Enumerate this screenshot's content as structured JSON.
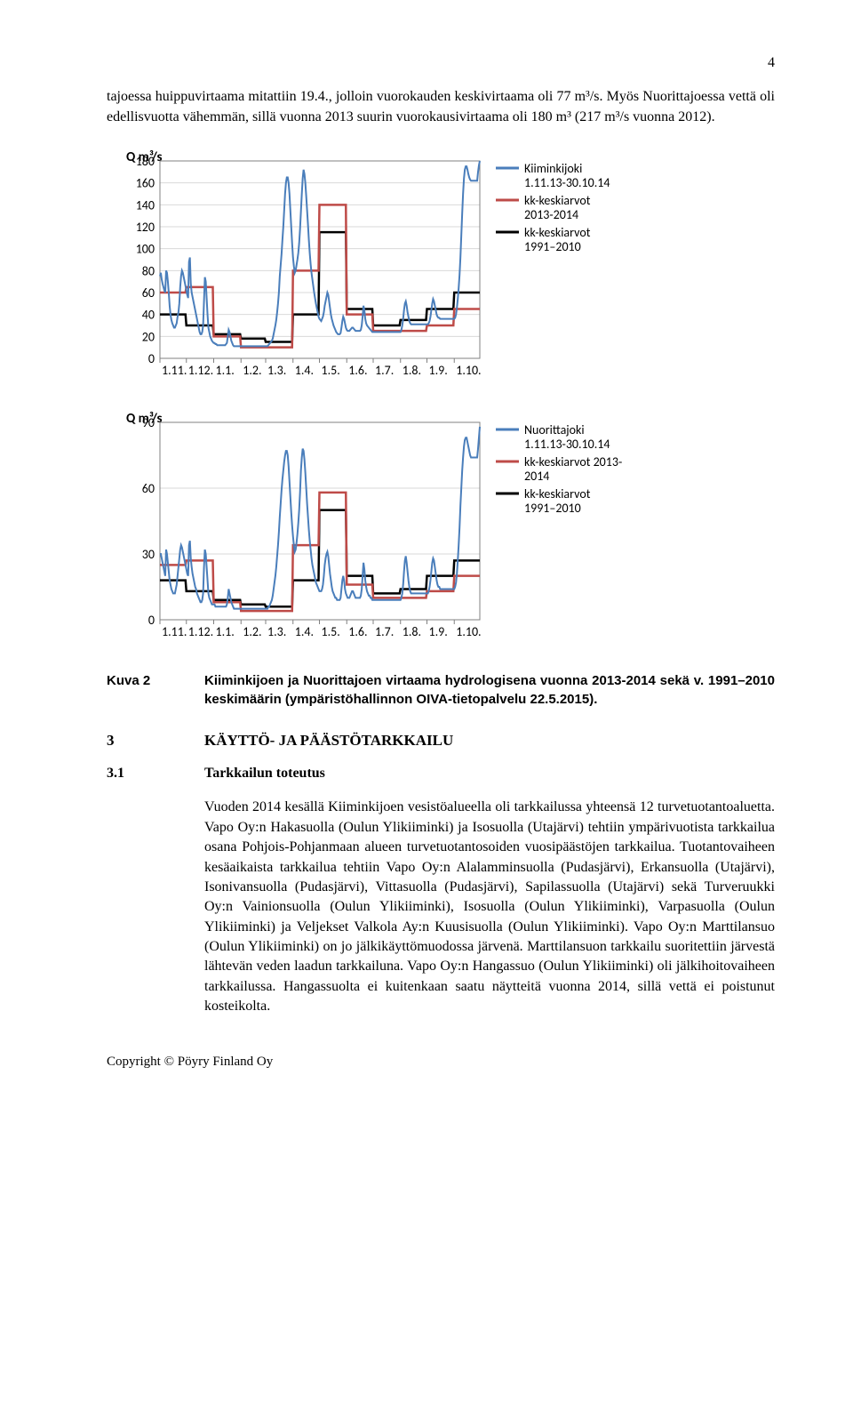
{
  "page_number": "4",
  "p1": "tajoessa huippuvirtaama mitattiin 19.4., jolloin vuorokauden keskivirtaama oli 77 m³/s. Myös Nuorittajoessa vettä oli edellisvuotta vähemmän, sillä vuonna 2013 suurin vuorokausivirtaama oli 180 m³ (217 m³/s vuonna 2012).",
  "chart1": {
    "type": "line",
    "y_title": "Q m³/s",
    "ymax": 180,
    "ymin": 0,
    "ytick_step": 20,
    "x_ticks": [
      "1.11.",
      "1.12.",
      "1.1.",
      "1.2.",
      "1.3.",
      "1.4.",
      "1.5.",
      "1.6.",
      "1.7.",
      "1.8.",
      "1.9.",
      "1.10."
    ],
    "colors": {
      "daily": "#4a7ebb",
      "monthly_new": "#be4b48",
      "monthly_old": "#000000",
      "grid": "#d9d9d9",
      "axis": "#808080",
      "bg": "#ffffff"
    },
    "line_width": 2,
    "step_width": 2.5,
    "legend": [
      {
        "label": "Kiiminkijoki",
        "label2": "1.11.13-30.10.14",
        "color": "#4a7ebb"
      },
      {
        "label": "kk-keskiarvot",
        "label2": "2013-2014",
        "color": "#be4b48"
      },
      {
        "label": "kk-keskiarvot",
        "label2": "1991–2010",
        "color": "#000000"
      }
    ],
    "daily_per_month": [
      [
        75,
        78,
        72,
        68,
        65,
        62,
        60,
        80,
        78,
        70,
        60,
        48,
        40,
        35,
        32,
        30,
        28,
        28,
        30,
        32,
        38,
        42,
        50,
        65,
        75,
        80,
        78,
        74,
        70,
        66
      ],
      [
        62,
        58,
        55,
        88,
        92,
        68,
        60,
        56,
        52,
        48,
        44,
        40,
        36,
        32,
        28,
        24,
        22,
        22,
        24,
        30,
        52,
        74,
        70,
        55,
        40,
        28,
        24,
        20,
        18,
        16,
        15
      ],
      [
        14,
        14,
        13,
        13,
        12,
        12,
        12,
        12,
        12,
        12,
        12,
        12,
        12,
        12,
        13,
        14,
        20,
        26,
        24,
        20,
        16,
        14,
        12,
        11,
        11,
        11,
        11,
        11,
        11,
        11,
        11
      ],
      [
        11,
        11,
        11,
        11,
        11,
        11,
        11,
        11,
        11,
        11,
        11,
        11,
        11,
        11,
        11,
        11,
        11,
        11,
        11,
        11,
        11,
        11,
        11,
        11,
        11,
        11,
        11,
        11
      ],
      [
        11,
        11,
        11,
        12,
        13,
        14,
        15,
        16,
        18,
        22,
        26,
        30,
        35,
        42,
        50,
        60,
        75,
        85,
        95,
        108,
        120,
        135,
        150,
        160,
        165,
        165,
        160,
        150,
        135,
        120,
        105
      ],
      [
        92,
        84,
        78,
        80,
        85,
        90,
        96,
        105,
        118,
        134,
        150,
        164,
        172,
        168,
        160,
        148,
        135,
        122,
        108,
        96,
        86,
        78,
        72,
        66,
        60,
        55,
        50,
        46,
        42,
        38
      ],
      [
        36,
        35,
        34,
        36,
        38,
        42,
        48,
        52,
        56,
        60,
        58,
        52,
        46,
        40,
        36,
        33,
        30,
        28,
        26,
        24,
        23,
        22,
        22,
        22,
        23,
        28,
        34,
        38,
        36,
        32,
        28
      ],
      [
        26,
        25,
        25,
        25,
        26,
        27,
        28,
        28,
        27,
        26,
        25,
        25,
        25,
        25,
        25,
        25,
        26,
        30,
        38,
        48,
        44,
        36,
        32,
        30,
        29,
        28,
        27,
        26,
        25,
        24
      ],
      [
        24,
        24,
        24,
        24,
        24,
        24,
        24,
        24,
        24,
        24,
        24,
        24,
        24,
        24,
        24,
        24,
        24,
        24,
        24,
        24,
        24,
        24,
        24,
        24,
        24,
        24,
        24,
        24,
        24,
        24,
        24
      ],
      [
        24,
        26,
        30,
        36,
        44,
        50,
        52,
        48,
        42,
        38,
        34,
        32,
        31,
        31,
        31,
        31,
        31,
        31,
        31,
        31,
        31,
        31,
        31,
        31,
        31,
        31,
        31,
        31,
        31,
        31
      ],
      [
        31,
        31,
        32,
        34,
        38,
        44,
        50,
        54,
        52,
        48,
        44,
        40,
        38,
        37,
        37,
        36,
        36,
        36,
        36,
        36,
        36,
        36,
        36,
        36,
        36,
        36,
        36,
        36,
        36,
        36,
        36
      ],
      [
        36,
        37,
        40,
        46,
        54,
        64,
        76,
        92,
        112,
        132,
        150,
        164,
        172,
        175,
        175,
        172,
        168,
        165,
        163,
        162,
        162,
        162,
        162,
        162,
        162,
        162,
        162,
        170,
        176,
        180
      ]
    ],
    "monthly_new": [
      60,
      65,
      20,
      10,
      10,
      80,
      140,
      40,
      25,
      25,
      30,
      45
    ],
    "monthly_old": [
      40,
      30,
      22,
      18,
      15,
      40,
      115,
      45,
      30,
      35,
      45,
      60
    ]
  },
  "chart2": {
    "type": "line",
    "y_title": "Q m³/s",
    "ymax": 90,
    "ymin": 0,
    "yticks": [
      0,
      30,
      60,
      90
    ],
    "x_ticks": [
      "1.11.",
      "1.12.",
      "1.1.",
      "1.2.",
      "1.3.",
      "1.4.",
      "1.5.",
      "1.6.",
      "1.7.",
      "1.8.",
      "1.9.",
      "1.10."
    ],
    "colors": {
      "daily": "#4a7ebb",
      "monthly_new": "#be4b48",
      "monthly_old": "#000000",
      "grid": "#d9d9d9",
      "axis": "#808080",
      "bg": "#ffffff"
    },
    "line_width": 2,
    "step_width": 2.5,
    "legend": [
      {
        "label": "Nuorittajoki",
        "label2": "1.11.13-30.10.14",
        "color": "#4a7ebb"
      },
      {
        "label": "kk-keskiarvot 2013-",
        "label2": "2014",
        "color": "#be4b48"
      },
      {
        "label": "kk-keskiarvot",
        "label2": "1991–2010",
        "color": "#000000"
      }
    ],
    "daily_per_month": [
      [
        30,
        30,
        28,
        26,
        24,
        22,
        20,
        32,
        30,
        26,
        22,
        18,
        16,
        14,
        13,
        12,
        12,
        12,
        14,
        16,
        20,
        24,
        28,
        32,
        34,
        33,
        31,
        29,
        27,
        25
      ],
      [
        23,
        21,
        20,
        34,
        36,
        28,
        24,
        21,
        19,
        17,
        15,
        14,
        12,
        11,
        10,
        9,
        8,
        8,
        9,
        12,
        24,
        32,
        30,
        24,
        18,
        12,
        10,
        9,
        8,
        7,
        7
      ],
      [
        7,
        7,
        6,
        6,
        6,
        6,
        6,
        6,
        6,
        6,
        6,
        6,
        6,
        6,
        6,
        7,
        10,
        14,
        12,
        10,
        8,
        7,
        6,
        5,
        5,
        5,
        5,
        5,
        5,
        5,
        5
      ],
      [
        5,
        5,
        5,
        5,
        5,
        5,
        5,
        5,
        5,
        5,
        5,
        5,
        5,
        5,
        5,
        5,
        5,
        5,
        5,
        5,
        5,
        5,
        5,
        5,
        5,
        5,
        5,
        5
      ],
      [
        5,
        5,
        5,
        6,
        6,
        7,
        8,
        9,
        11,
        14,
        17,
        20,
        24,
        29,
        34,
        40,
        47,
        53,
        59,
        64,
        68,
        72,
        75,
        77,
        77,
        75,
        70,
        63,
        56,
        49,
        43
      ],
      [
        38,
        34,
        31,
        32,
        35,
        39,
        44,
        50,
        58,
        68,
        74,
        78,
        77,
        73,
        67,
        60,
        53,
        47,
        41,
        36,
        32,
        28,
        25,
        23,
        21,
        19,
        17,
        16,
        15,
        14
      ],
      [
        13,
        13,
        13,
        14,
        16,
        20,
        25,
        28,
        30,
        31,
        29,
        25,
        21,
        18,
        15,
        13,
        12,
        11,
        10,
        10,
        9,
        9,
        9,
        9,
        10,
        14,
        18,
        20,
        18,
        14,
        12
      ],
      [
        11,
        10,
        10,
        10,
        11,
        12,
        13,
        13,
        12,
        11,
        10,
        10,
        10,
        10,
        10,
        10,
        11,
        14,
        20,
        26,
        23,
        18,
        15,
        13,
        12,
        11,
        11,
        10,
        10,
        9
      ],
      [
        9,
        9,
        9,
        9,
        9,
        9,
        9,
        9,
        9,
        9,
        9,
        9,
        9,
        9,
        9,
        9,
        9,
        9,
        9,
        9,
        9,
        9,
        9,
        9,
        9,
        9,
        9,
        9,
        9,
        9,
        9
      ],
      [
        9,
        10,
        12,
        16,
        22,
        27,
        29,
        26,
        22,
        18,
        15,
        13,
        12,
        12,
        12,
        12,
        12,
        12,
        12,
        12,
        12,
        12,
        12,
        12,
        12,
        12,
        12,
        12,
        12,
        12
      ],
      [
        12,
        12,
        13,
        15,
        18,
        22,
        26,
        28,
        27,
        24,
        21,
        18,
        16,
        15,
        15,
        14,
        14,
        14,
        14,
        14,
        14,
        14,
        14,
        14,
        14,
        14,
        14,
        14,
        14,
        14,
        14
      ],
      [
        14,
        15,
        17,
        21,
        27,
        34,
        42,
        52,
        60,
        68,
        74,
        79,
        82,
        83,
        83,
        81,
        79,
        77,
        75,
        74,
        74,
        74,
        74,
        74,
        74,
        74,
        74,
        78,
        83,
        88
      ]
    ],
    "monthly_new": [
      25,
      27,
      8,
      4,
      4,
      34,
      58,
      16,
      10,
      10,
      13,
      20
    ],
    "monthly_old": [
      18,
      13,
      9,
      7,
      6,
      18,
      50,
      20,
      12,
      14,
      20,
      27
    ]
  },
  "kuva_label": "Kuva 2",
  "kuva_caption": "Kiiminkijoen ja Nuorittajoen virtaama hydrologisena vuonna 2013-2014 sekä v. 1991–2010 keskimäärin (ympäristöhallinnon OIVA-tietopalvelu 22.5.2015).",
  "h3_num": "3",
  "h3_txt": "KÄYTTÖ- JA PÄÄSTÖTARKKAILU",
  "h31_num": "3.1",
  "h31_txt": "Tarkkailun toteutus",
  "p2": "Vuoden 2014 kesällä Kiiminkijoen vesistöalueella oli tarkkailussa yhteensä 12 turvetuotantoaluetta. Vapo Oy:n Hakasuolla (Oulun Ylikiiminki) ja Isosuolla (Utajärvi) tehtiin ympärivuotista tarkkailua osana Pohjois-Pohjanmaan alueen turvetuotantosoiden vuosipäästöjen tarkkailua. Tuotantovaiheen kesäaikaista tarkkailua tehtiin Vapo Oy:n Alalamminsuolla (Pudasjärvi), Erkansuolla (Utajärvi), Isonivansuolla (Pudasjärvi), Vittasuolla (Pudasjärvi), Sapilassuolla (Utajärvi) sekä Turveruukki Oy:n Vainionsuolla (Oulun Ylikiiminki), Isosuolla (Oulun Ylikiiminki), Varpasuolla (Oulun Ylikiiminki) ja Veljekset Valkola Ay:n Kuusisuolla (Oulun Ylikiiminki). Vapo Oy:n Marttilansuo (Oulun Ylikiiminki) on jo jälkikäyttömuodossa järvenä. Marttilansuon tarkkailu suoritettiin järvestä lähtevän veden laadun tarkkailuna. Vapo Oy:n Hangassuo (Oulun Ylikiiminki) oli jälkihoitova­iheen tarkkailussa. Hangassuolta ei kuitenkaan saatu näytteitä vuonna 2014, sillä vettä ei poistunut kosteikolta.",
  "copyright": "Copyright © Pöyry Finland Oy"
}
